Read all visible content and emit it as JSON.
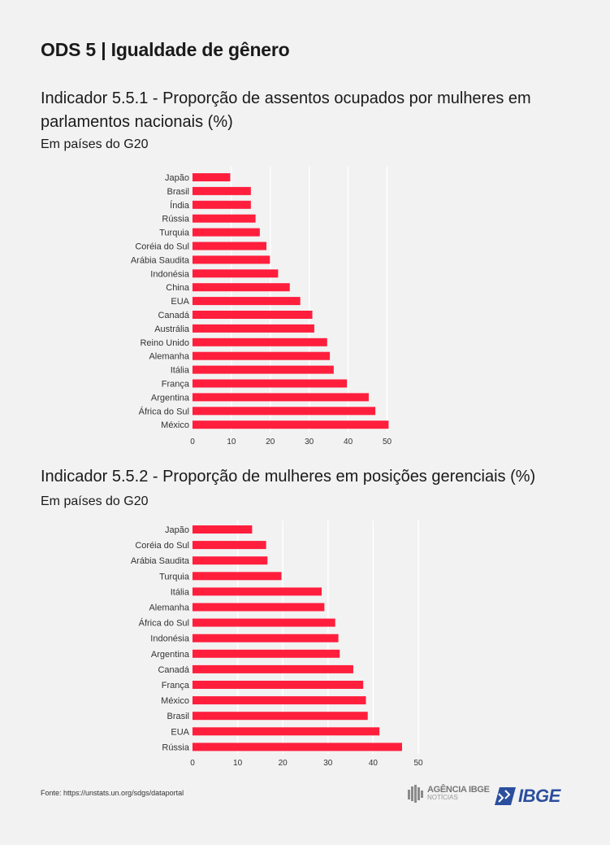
{
  "header": {
    "title": "ODS 5 | Igualdade de gênero"
  },
  "chart_data": [
    {
      "type": "bar",
      "orientation": "horizontal",
      "title": "Indicador 5.5.1 - Proporção de assentos ocupados por mulheres em parlamentos nacionais (%)",
      "subtitle": "Em países do G20",
      "categories": [
        "Japão",
        "Brasil",
        "Índia",
        "Rússia",
        "Turquia",
        "Coréia do Sul",
        "Arábia Saudita",
        "Indonésia",
        "China",
        "EUA",
        "Canadá",
        "Austrália",
        "Reino Unido",
        "Alemanha",
        "Itália",
        "França",
        "Argentina",
        "África do Sul",
        "México"
      ],
      "values": [
        9.7,
        15.0,
        15.0,
        16.2,
        17.3,
        19.0,
        19.9,
        22.0,
        25.0,
        27.7,
        30.8,
        31.3,
        34.6,
        35.3,
        36.3,
        39.7,
        45.3,
        47.0,
        50.4
      ],
      "xlim": [
        0,
        50
      ],
      "xticks": [
        0,
        10,
        20,
        30,
        40,
        50
      ],
      "grid": true,
      "color": "#ff1f3d"
    },
    {
      "type": "bar",
      "orientation": "horizontal",
      "title": "Indicador 5.5.2 - Proporção de mulheres em posições gerenciais (%)",
      "subtitle": "Em países do G20",
      "categories": [
        "Japão",
        "Coréia do Sul",
        "Arábia Saudita",
        "Turquia",
        "Itália",
        "Alemanha",
        "África do Sul",
        "Indonésia",
        "Argentina",
        "Canadá",
        "França",
        "México",
        "Brasil",
        "EUA",
        "Rússia"
      ],
      "values": [
        13.2,
        16.3,
        16.6,
        19.7,
        28.6,
        29.2,
        31.6,
        32.3,
        32.6,
        35.6,
        37.8,
        38.4,
        38.8,
        41.4,
        46.4
      ],
      "xlim": [
        0,
        50
      ],
      "xticks": [
        0,
        10,
        20,
        30,
        40,
        50
      ],
      "grid": true,
      "color": "#ff1f3d"
    }
  ],
  "footer": {
    "source": "Fonte: https://unstats.un.org/sdgs/dataportal",
    "agencia_line1": "AGÊNCIA IBGE",
    "agencia_line2": "NOTÍCIAS",
    "ibge_logo": "IBGE"
  }
}
